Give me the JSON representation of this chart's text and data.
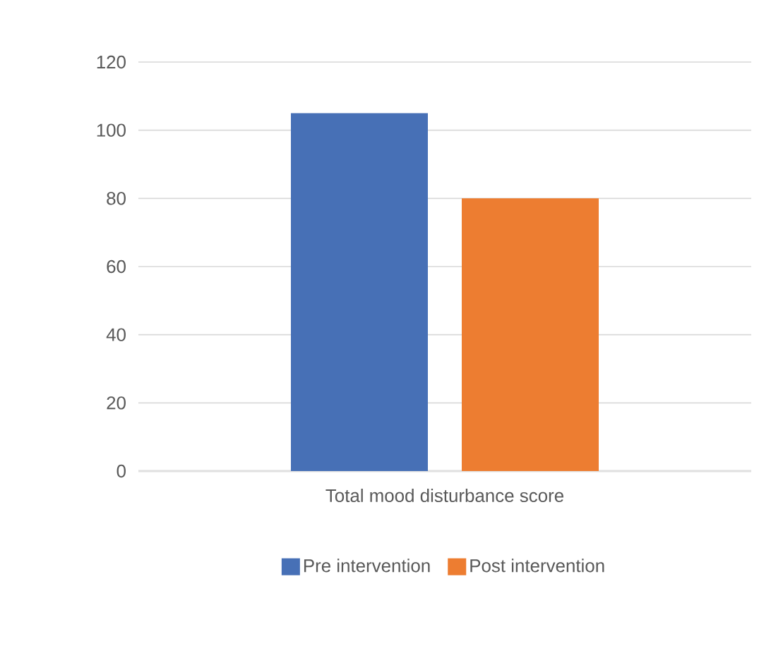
{
  "chart_data": {
    "type": "bar",
    "categories": [
      "Total mood disturbance score"
    ],
    "series": [
      {
        "name": "Pre intervention",
        "color": "#4770b6",
        "values": [
          105
        ]
      },
      {
        "name": "Post intervention",
        "color": "#ed7d31",
        "values": [
          80
        ]
      }
    ],
    "ylim": [
      0,
      120
    ],
    "yticks": [
      0,
      20,
      40,
      60,
      80,
      100,
      120
    ],
    "grid": "y",
    "legend": "bottom"
  }
}
